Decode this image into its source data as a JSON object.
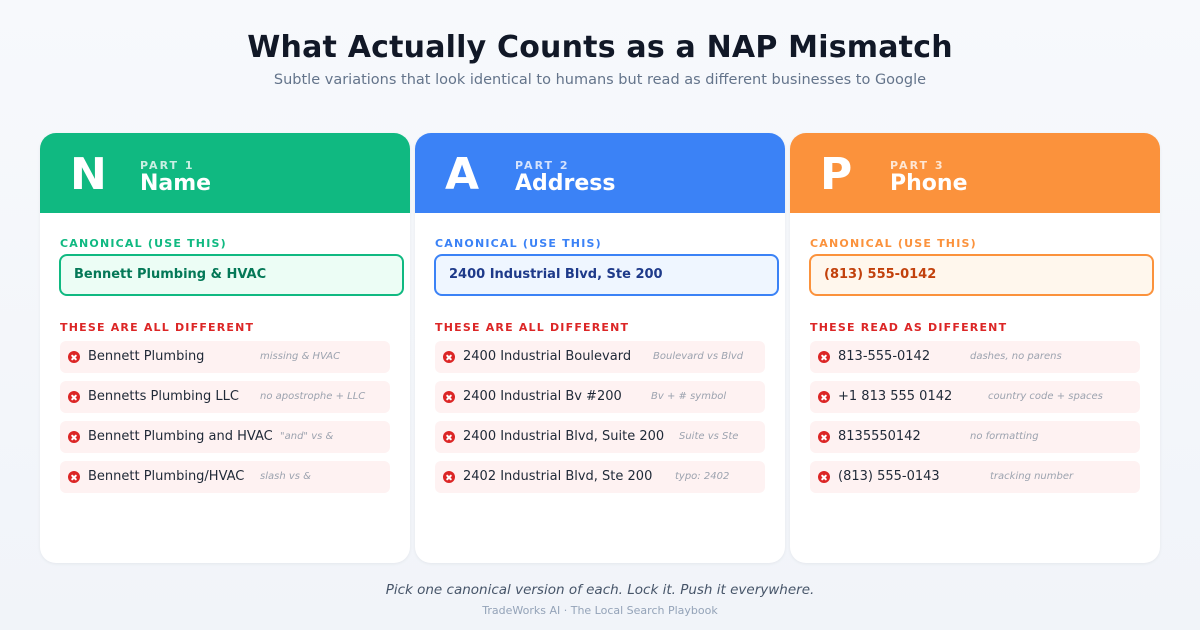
{
  "title": "What Actually Counts as a NAP Mismatch",
  "subtitle": "Subtle variations that look identical to humans but read as different businesses to Google",
  "cards": [
    {
      "letter": "N",
      "part": "PART 1",
      "title": "Name",
      "colors": {
        "header": "#10b981",
        "label": "#10b981",
        "box_border": "#10b981",
        "box_bg": "#ecfdf5",
        "box_text": "#047857"
      },
      "canonical_label": "CANONICAL (USE THIS)",
      "canonical_value": "Bennett Plumbing & HVAC",
      "different_label": "THESE ARE ALL DIFFERENT",
      "items": [
        {
          "text": "Bennett Plumbing",
          "note": "missing & HVAC"
        },
        {
          "text": "Bennetts Plumbing LLC",
          "note": "no apostrophe + LLC"
        },
        {
          "text": "Bennett Plumbing and HVAC",
          "note": "\"and\" vs &"
        },
        {
          "text": "Bennett Plumbing/HVAC",
          "note": "slash vs &"
        }
      ]
    },
    {
      "letter": "A",
      "part": "PART 2",
      "title": "Address",
      "colors": {
        "header": "#3b82f6",
        "label": "#3b82f6",
        "box_border": "#3b82f6",
        "box_bg": "#eff6ff",
        "box_text": "#1e3a8a"
      },
      "canonical_label": "CANONICAL (USE THIS)",
      "canonical_value": "2400 Industrial Blvd, Ste 200",
      "different_label": "THESE ARE ALL DIFFERENT",
      "items": [
        {
          "text": "2400 Industrial Boulevard",
          "note": "Boulevard vs Blvd"
        },
        {
          "text": "2400 Industrial Bv #200",
          "note": "Bv + # symbol"
        },
        {
          "text": "2400 Industrial Blvd, Suite 200",
          "note": "Suite vs Ste"
        },
        {
          "text": "2402 Industrial Blvd, Ste 200",
          "note": "typo: 2402"
        }
      ]
    },
    {
      "letter": "P",
      "part": "PART 3",
      "title": "Phone",
      "colors": {
        "header": "#fb923c",
        "label": "#fb923c",
        "box_border": "#fb923c",
        "box_bg": "#fff7ed",
        "box_text": "#c2410c"
      },
      "canonical_label": "CANONICAL (USE THIS)",
      "canonical_value": "(813) 555-0142",
      "different_label": "THESE READ AS DIFFERENT",
      "items": [
        {
          "text": "813-555-0142",
          "note": "dashes, no parens"
        },
        {
          "text": "+1 813 555 0142",
          "note": "country code + spaces"
        },
        {
          "text": "8135550142",
          "note": "no formatting"
        },
        {
          "text": "(813) 555-0143",
          "note": "tracking number"
        }
      ]
    }
  ],
  "footer": {
    "main": "Pick one canonical version of each. Lock it. Push it everywhere.",
    "sub": "TradeWorks AI · The Local Search Playbook"
  },
  "icons": {
    "mismatch": "x-circle-icon"
  }
}
